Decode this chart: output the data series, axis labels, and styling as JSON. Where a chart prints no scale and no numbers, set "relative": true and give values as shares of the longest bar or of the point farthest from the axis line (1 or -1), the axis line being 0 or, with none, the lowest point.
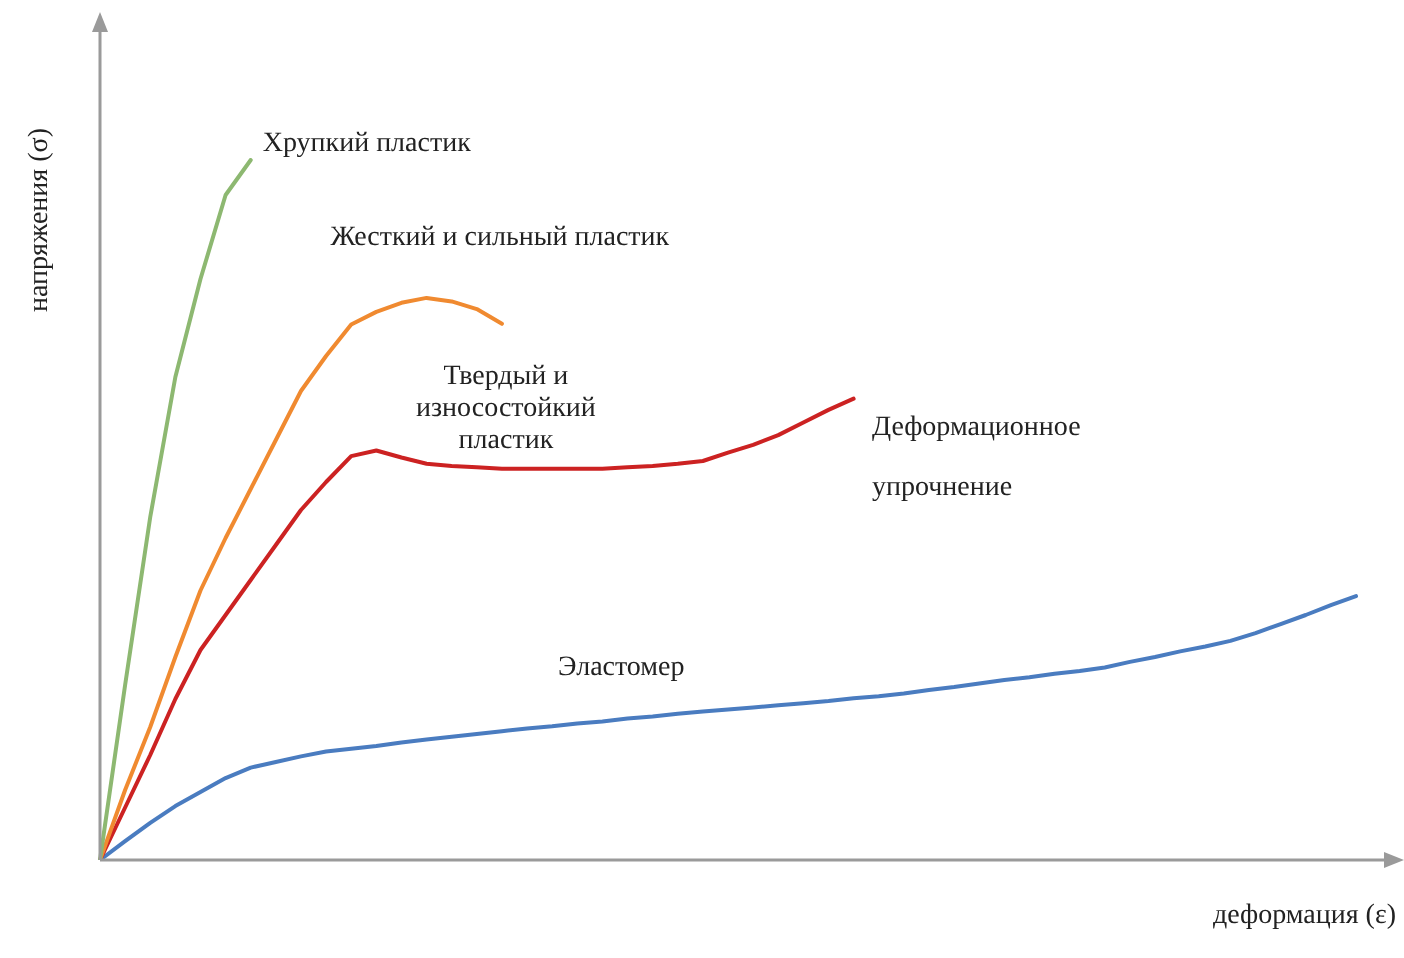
{
  "chart_data": {
    "type": "line",
    "relative": true,
    "xlabel": "деформация (ε)",
    "ylabel": "напряжения (σ)",
    "legend": false,
    "marker": "none",
    "line_style": "solid",
    "categories": [
      null,
      null,
      null,
      null,
      null,
      null,
      null,
      null,
      null,
      null,
      null,
      null,
      null,
      null,
      null,
      null,
      null,
      null,
      null,
      null,
      null,
      null,
      null,
      null,
      null,
      null,
      null,
      null,
      null,
      null,
      null,
      null,
      null,
      null,
      null,
      null,
      null,
      null,
      null,
      null,
      null,
      null,
      null,
      null,
      null,
      null,
      null,
      null,
      null,
      null,
      null
    ],
    "series": [
      {
        "name": "Хрупкий пластик",
        "color": "#8db871",
        "values": [
          0,
          0.25,
          0.49,
          0.69,
          0.83,
          0.95,
          1,
          null,
          null,
          null,
          null,
          null,
          null,
          null,
          null,
          null,
          null,
          null,
          null,
          null,
          null,
          null,
          null,
          null,
          null,
          null,
          null,
          null,
          null,
          null,
          null,
          null,
          null,
          null,
          null,
          null,
          null,
          null,
          null,
          null,
          null,
          null,
          null,
          null,
          null,
          null,
          null,
          null,
          null,
          null,
          null
        ]
      },
      {
        "name": "Жесткий и сильный пластик",
        "color": "#f08a30",
        "values": [
          0,
          0.1,
          0.19,
          0.29,
          0.385,
          0.46,
          0.53,
          0.6,
          0.67,
          0.72,
          0.765,
          0.783,
          0.796,
          0.803,
          0.798,
          0.787,
          0.766,
          null,
          null,
          null,
          null,
          null,
          null,
          null,
          null,
          null,
          null,
          null,
          null,
          null,
          null,
          null,
          null,
          null,
          null,
          null,
          null,
          null,
          null,
          null,
          null,
          null,
          null,
          null,
          null,
          null,
          null,
          null,
          null,
          null,
          null
        ]
      },
      {
        "name": "Твердый и износостойкий пластик",
        "color": "#cc2222",
        "values": [
          0,
          0.075,
          0.15,
          0.23,
          0.3,
          0.35,
          0.4,
          0.45,
          0.5,
          0.54,
          0.577,
          0.585,
          0.575,
          0.566,
          0.563,
          0.561,
          0.559,
          0.559,
          0.559,
          0.559,
          0.559,
          0.561,
          0.563,
          0.566,
          0.57,
          0.582,
          0.593,
          0.607,
          0.625,
          0.643,
          0.659,
          null,
          null,
          null,
          null,
          null,
          null,
          null,
          null,
          null,
          null,
          null,
          null,
          null,
          null,
          null,
          null,
          null,
          null,
          null,
          null
        ]
      },
      {
        "name": "Эластомер",
        "color": "#4a7cc0",
        "values": [
          0,
          0.027,
          0.053,
          0.077,
          0.097,
          0.117,
          0.132,
          0.14,
          0.148,
          0.155,
          0.159,
          0.163,
          0.168,
          0.172,
          0.176,
          0.18,
          0.184,
          0.188,
          0.191,
          0.195,
          0.198,
          0.202,
          0.205,
          0.209,
          0.212,
          0.215,
          0.218,
          0.221,
          0.224,
          0.227,
          0.231,
          0.234,
          0.238,
          0.243,
          0.247,
          0.252,
          0.257,
          0.261,
          0.266,
          0.27,
          0.275,
          0.283,
          0.29,
          0.298,
          0.305,
          0.313,
          0.324,
          0.337,
          0.35,
          0.364,
          0.377
        ]
      }
    ],
    "annotations": [
      "Деформационное упрочнение"
    ]
  }
}
